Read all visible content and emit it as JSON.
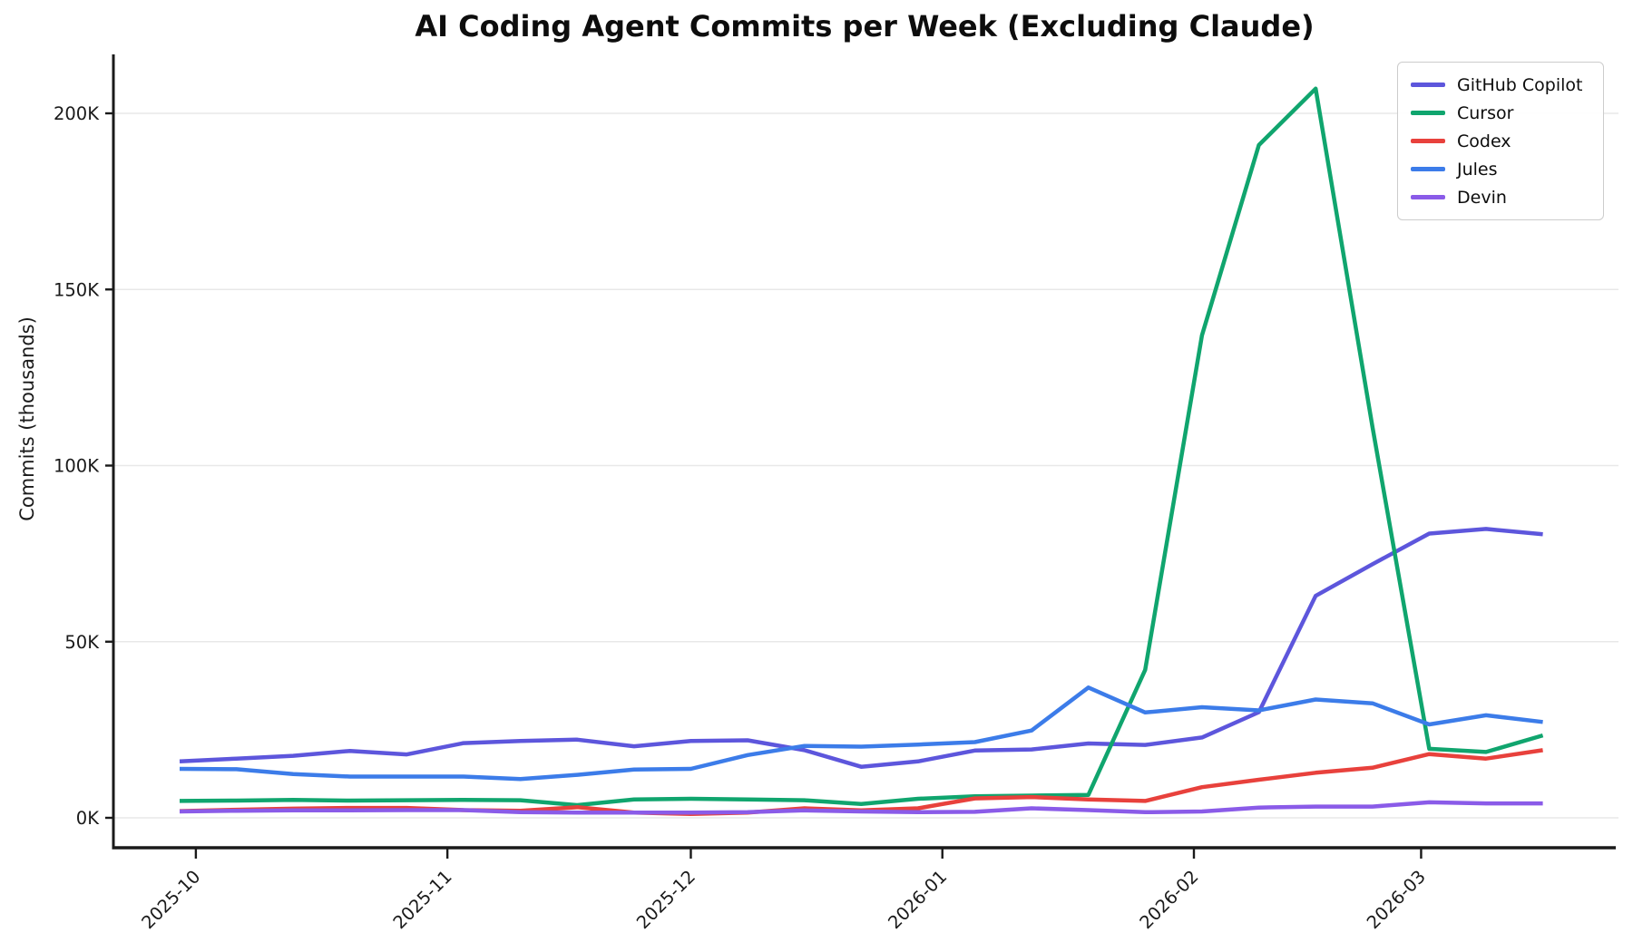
{
  "page": {
    "background": "#ffffff"
  },
  "chart_data": {
    "type": "line",
    "title": "AI Coding Agent Commits per Week (Excluding Claude)",
    "xlabel": "",
    "ylabel": "Commits (thousands)",
    "grid": true,
    "legend_position": "upper right",
    "ylim_thousands": [
      0,
      215
    ],
    "y_ticks": [
      {
        "label": "0K",
        "value": 0
      },
      {
        "label": "50K",
        "value": 50
      },
      {
        "label": "100K",
        "value": 100
      },
      {
        "label": "150K",
        "value": 150
      },
      {
        "label": "200K",
        "value": 200
      }
    ],
    "x_ticks": [
      {
        "label": "2025-10",
        "day_offset": 2
      },
      {
        "label": "2025-11",
        "day_offset": 33
      },
      {
        "label": "2025-12",
        "day_offset": 63
      },
      {
        "label": "2026-01",
        "day_offset": 94
      },
      {
        "label": "2026-02",
        "day_offset": 125
      },
      {
        "label": "2026-03",
        "day_offset": 153
      }
    ],
    "x_unit": "weekly data points",
    "x_start_date_estimate": "2025-09-29",
    "x_step_days": 7,
    "series": [
      {
        "name": "GitHub Copilot",
        "color": "#5D56DC",
        "values": [
          16.0,
          16.8,
          17.6,
          19.0,
          18.0,
          21.2,
          21.8,
          22.2,
          20.3,
          21.8,
          22.0,
          19.2,
          14.5,
          16.0,
          19.1,
          19.4,
          21.1,
          20.7,
          22.8,
          30.0,
          63.0,
          72.0,
          80.7,
          82.0,
          80.5
        ]
      },
      {
        "name": "Cursor",
        "color": "#10A56E",
        "values": [
          4.8,
          4.9,
          5.1,
          4.9,
          5.0,
          5.1,
          5.0,
          3.6,
          5.2,
          5.4,
          5.2,
          5.0,
          3.9,
          5.4,
          6.1,
          6.3,
          6.5,
          42.0,
          137.0,
          191.0,
          207.0,
          111.0,
          19.6,
          18.7,
          23.4
        ]
      },
      {
        "name": "Codex",
        "color": "#E8413C",
        "values": [
          1.9,
          2.3,
          2.6,
          2.8,
          2.8,
          2.2,
          2.0,
          3.0,
          1.5,
          1.1,
          1.5,
          2.7,
          2.1,
          2.7,
          5.5,
          5.9,
          5.2,
          4.8,
          8.7,
          10.8,
          12.8,
          14.2,
          18.1,
          16.8,
          19.2
        ]
      },
      {
        "name": "Jules",
        "color": "#3C7CE9",
        "values": [
          13.9,
          13.8,
          12.4,
          11.7,
          11.7,
          11.7,
          11.0,
          12.2,
          13.7,
          13.9,
          17.8,
          20.4,
          20.2,
          20.8,
          21.5,
          24.8,
          37.0,
          29.9,
          31.4,
          30.5,
          33.6,
          32.5,
          26.5,
          29.1,
          27.2
        ]
      },
      {
        "name": "Devin",
        "color": "#8A5BE8",
        "values": [
          1.8,
          2.0,
          2.1,
          2.1,
          2.2,
          2.2,
          1.6,
          1.5,
          1.5,
          1.5,
          1.6,
          2.1,
          1.8,
          1.6,
          1.7,
          2.7,
          2.2,
          1.6,
          1.8,
          2.9,
          3.2,
          3.2,
          4.4,
          4.1,
          4.1
        ]
      }
    ]
  }
}
